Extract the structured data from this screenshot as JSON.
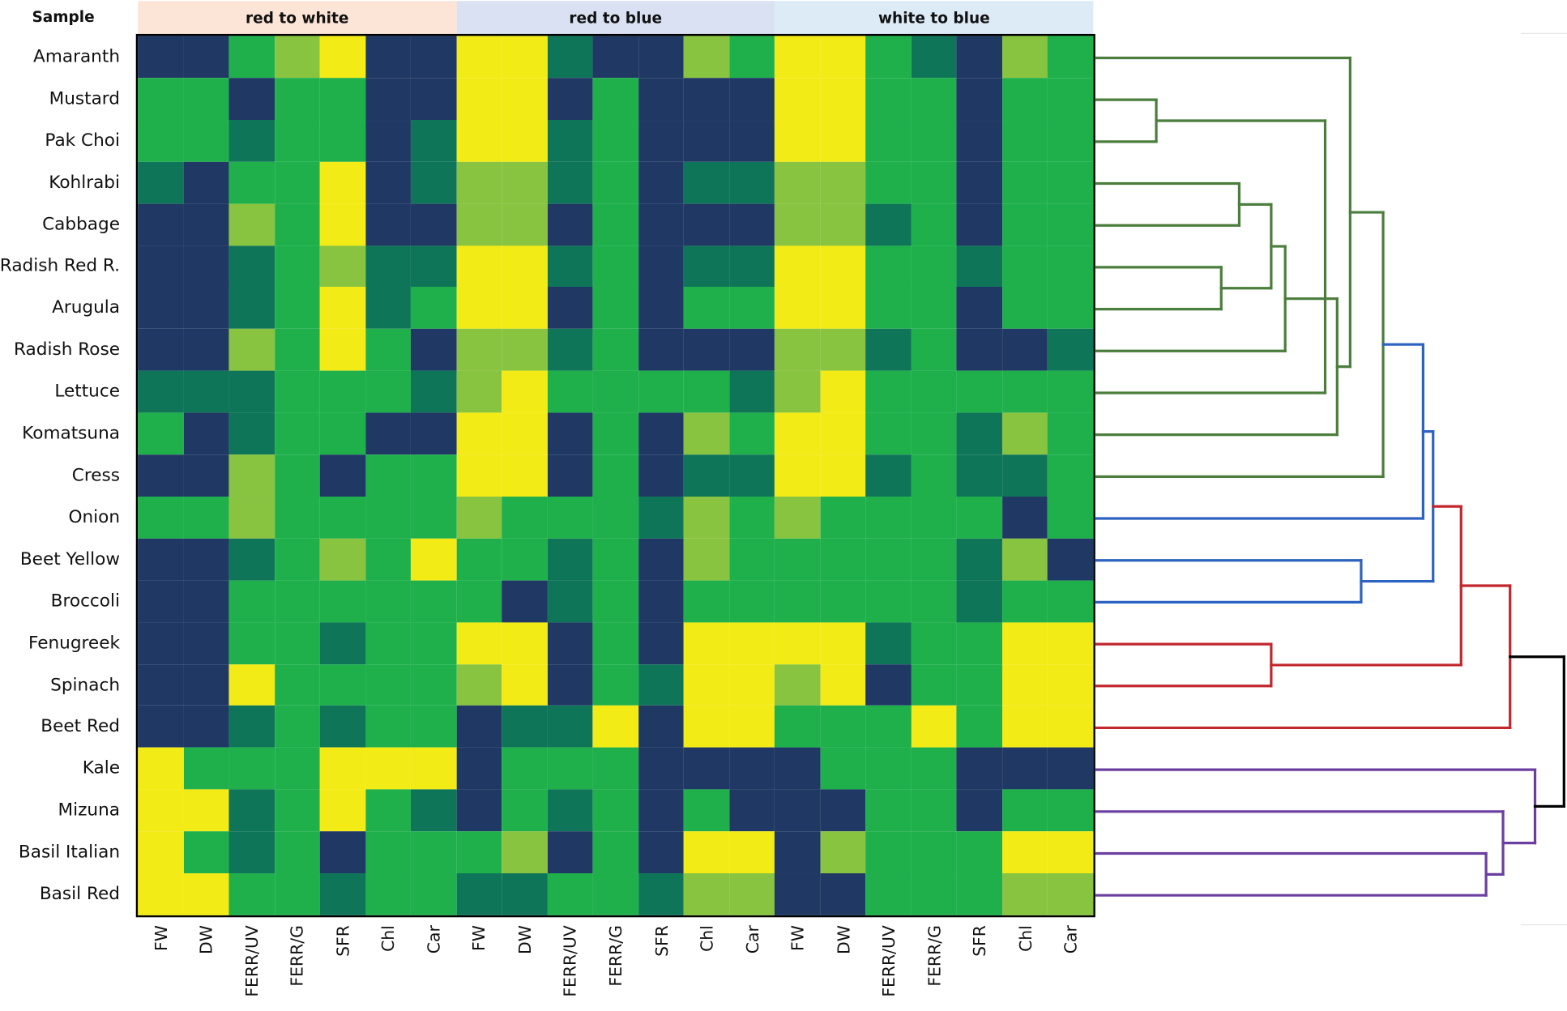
{
  "chart_data": {
    "type": "heatmap",
    "title": "",
    "row_header": "Sample",
    "column_groups": [
      {
        "label": "red to white",
        "color": "#fce4d6",
        "span": 7
      },
      {
        "label": "red to blue",
        "color": "#d9e1f2",
        "span": 7
      },
      {
        "label": "white to blue",
        "color": "#ddebf7",
        "span": 7
      }
    ],
    "columns": [
      "FW",
      "DW",
      "FERR/UV",
      "FERR/G",
      "SFR",
      "Chl",
      "Car",
      "FW",
      "DW",
      "FERR/UV",
      "FERR/G",
      "SFR",
      "Chl",
      "Car",
      "FW",
      "DW",
      "FERR/UV",
      "FERR/G",
      "SFR",
      "Chl",
      "Car"
    ],
    "rows": [
      "Amaranth",
      "Mustard",
      "Pak Choi",
      "Kohlrabi",
      "Cabbage",
      "Radish Red R.",
      "Arugula",
      "Radish Rose",
      "Lettuce",
      "Komatsuna",
      "Cress",
      "Onion",
      "Beet Yellow",
      "Broccoli",
      "Fenugreek",
      "Spinach",
      "Beet Red",
      "Kale",
      "Mizuna",
      "Basil Italian",
      "Basil Red"
    ],
    "palette": {
      "N": "#203864",
      "D": "#0f7558",
      "G": "#1fb04c",
      "L": "#88c440",
      "Y": "#f3eb16"
    },
    "values": [
      "NNGLYNNYYDNNLGYYGDNLG",
      "GGNGGNNYYNGNNNYYGGNGG",
      "GGDGGNDYYDGNNNYYGGNGG",
      "DNGGYNDLLDGNDDLLGGNGG",
      "NNLGYNNLLNGNNNLLDGNGG",
      "NNDGLDDYYDGNDDYYGGDGG",
      "NNDGYDGYYNGNGGYYGGNGG",
      "NNLGYGNLLDGNNNLLDGNND",
      "DDDGGGDLYGGGGDLYGGGGG",
      "GNDGGNNYYNGNLGYYGGDLG",
      "NNLGNGGYYNGNDDYYDGDDG",
      "GGLGGGGLGGGDLGLGGGGNG",
      "NNDGLGYGGDGNLGGGGGDLN",
      "NNGGGGGGNDGNGGGGGGDGG",
      "NNGGDGGYYNGNYYYYDGGYY",
      "NNYGGGGLYNGDYYLYNGGYY",
      "NNDGDGGNDDYNYYGGGYGYY",
      "YGGGYYYNGGGNNNNGGGNNN",
      "YYDGYGDNGDGNGNNNGGNGG",
      "YGDGNGGGLNGNYYNLGGGYY",
      "YYGGDGGDDGGDLLNNGGGLL"
    ],
    "dendrogram": {
      "orientation": "right",
      "clusters": {
        "green": "#4b7d3c",
        "blue": "#2d62c0",
        "red": "#c1272d",
        "purple": "#6b3fa0",
        "black": "#000000"
      },
      "merges": [
        {
          "id": "n1",
          "children": [
            1,
            2
          ],
          "cluster": "green"
        },
        {
          "id": "n2",
          "children": [
            3,
            4
          ],
          "cluster": "green"
        },
        {
          "id": "n3",
          "children": [
            5,
            6
          ],
          "cluster": "green"
        },
        {
          "id": "n4",
          "children": [
            "n2",
            "n3"
          ],
          "cluster": "green"
        },
        {
          "id": "n5",
          "children": [
            "n4",
            7
          ],
          "cluster": "green"
        },
        {
          "id": "n6",
          "children": [
            "n1",
            "n5",
            8
          ],
          "cluster": "green"
        },
        {
          "id": "n7",
          "children": [
            "n6",
            9
          ],
          "cluster": "green"
        },
        {
          "id": "n8",
          "children": [
            0,
            "n7"
          ],
          "cluster": "green"
        },
        {
          "id": "n9",
          "children": [
            "n8",
            10
          ],
          "cluster": "green"
        },
        {
          "id": "n10",
          "children": [
            "n9",
            11
          ],
          "cluster": "blue"
        },
        {
          "id": "n11",
          "children": [
            12,
            13
          ],
          "cluster": "blue"
        },
        {
          "id": "n12",
          "children": [
            "n10",
            "n11"
          ],
          "cluster": "blue"
        },
        {
          "id": "n13",
          "children": [
            14,
            15
          ],
          "cluster": "red"
        },
        {
          "id": "n14",
          "children": [
            "n12",
            "n13"
          ],
          "cluster": "red"
        },
        {
          "id": "n15",
          "children": [
            "n14",
            16
          ],
          "cluster": "red"
        },
        {
          "id": "n16",
          "children": [
            19,
            20
          ],
          "cluster": "purple"
        },
        {
          "id": "n17",
          "children": [
            18,
            "n16"
          ],
          "cluster": "purple"
        },
        {
          "id": "n18",
          "children": [
            17,
            "n17"
          ],
          "cluster": "purple"
        },
        {
          "id": "root",
          "children": [
            "n15",
            "n18"
          ],
          "cluster": "black"
        }
      ]
    }
  }
}
